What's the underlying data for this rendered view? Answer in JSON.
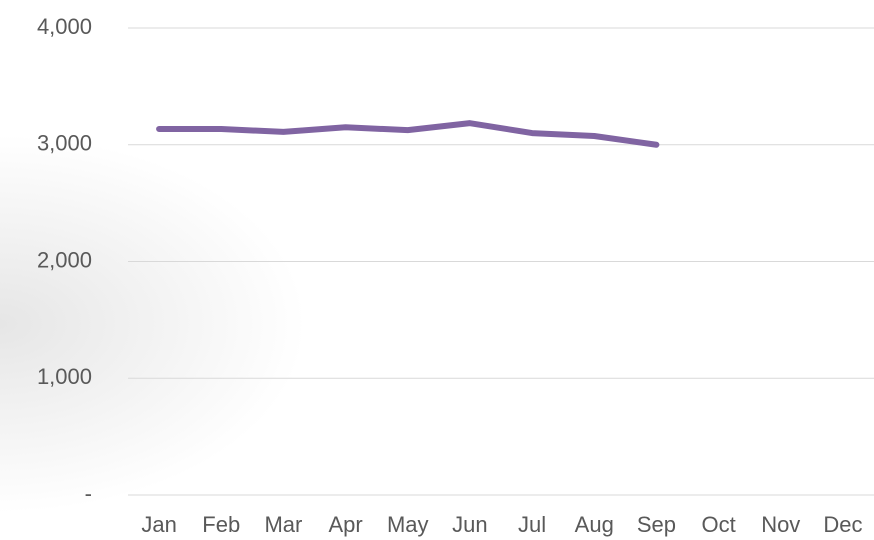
{
  "chart_data": {
    "type": "line",
    "categories": [
      "Jan",
      "Feb",
      "Mar",
      "Apr",
      "May",
      "Jun",
      "Jul",
      "Aug",
      "Sep",
      "Oct",
      "Nov",
      "Dec"
    ],
    "values": [
      3135,
      3135,
      3110,
      3150,
      3125,
      3185,
      3100,
      3075,
      3000,
      null,
      null,
      null
    ],
    "color": "#8064a2",
    "ylim": [
      0,
      4000
    ],
    "yticks": [
      {
        "value": 0,
        "label": "-"
      },
      {
        "value": 1000,
        "label": "1,000"
      },
      {
        "value": 2000,
        "label": "2,000"
      },
      {
        "value": 3000,
        "label": "3,000"
      },
      {
        "value": 4000,
        "label": "4,000"
      }
    ],
    "grid": true
  }
}
